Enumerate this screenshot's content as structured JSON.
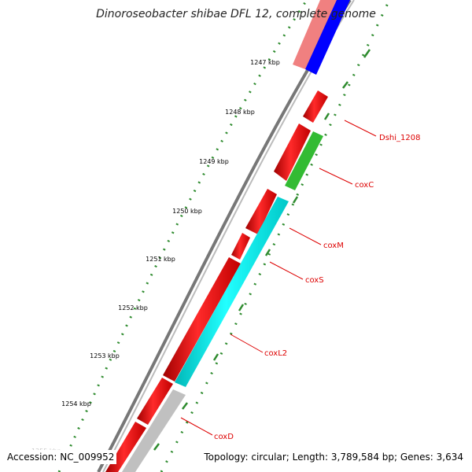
{
  "title": "Dinoroseobacter shibae DFL 12, complete genome",
  "accession": "Accession: NC_009952",
  "summary": "Topology: circular; Length: 3,789,584 bp; Genes: 3,634",
  "ticks": [
    "1247 kbp",
    "1248 kbp",
    "1249 kbp",
    "1250 kbp",
    "1251 kbp",
    "1252 kbp",
    "1253 kbp",
    "1254 kbp"
  ],
  "faint_tick": "1255 kbp",
  "genes": [
    {
      "label": "Dshi_1208",
      "color": "#ff0000"
    },
    {
      "label": "coxC",
      "color": "#33bb33"
    },
    {
      "label": "coxM",
      "color": "#ff0000"
    },
    {
      "label": "coxS",
      "color": "#ff0000"
    },
    {
      "label": "coxL2",
      "color": "#ff0000"
    },
    {
      "label": "coxD",
      "color": "#ff0000"
    }
  ],
  "colors": {
    "cds_forward": "#ff0000",
    "cds_reverse": "#ff0000",
    "rna_match": "#00e5e5",
    "gray_feature": "#c0c0c0",
    "blue_feature": "#0000ff",
    "pink_feature": "#f08080",
    "gc_dots": "#2e8b2e",
    "label_color": "#dd0000"
  }
}
